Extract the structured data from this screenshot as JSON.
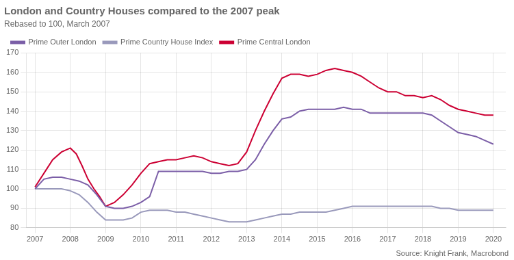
{
  "chart_data": {
    "type": "line",
    "title": "London and Country Houses compared to the 2007 peak",
    "subtitle": "Rebased to 100, March 2007",
    "annotations": [
      "Source: Knight Frank, Macrobond"
    ],
    "legend": "upper left",
    "grid": true,
    "xlim": [
      2006.75,
      2020.35
    ],
    "xticks": [
      2007,
      2008,
      2009,
      2010,
      2011,
      2012,
      2013,
      2014,
      2015,
      2016,
      2017,
      2018,
      2019,
      2020
    ],
    "ylim": [
      80,
      170
    ],
    "yticks": [
      80,
      90,
      100,
      110,
      120,
      130,
      140,
      150,
      160,
      170
    ],
    "series": [
      {
        "name": "Prime Outer London",
        "color": "#7b5ea7",
        "x": [
          2007.0,
          2007.25,
          2007.5,
          2007.75,
          2008.0,
          2008.25,
          2008.5,
          2008.75,
          2009.0,
          2009.25,
          2009.5,
          2009.75,
          2010.0,
          2010.25,
          2010.5,
          2010.75,
          2011.0,
          2011.25,
          2011.5,
          2011.75,
          2012.0,
          2012.25,
          2012.5,
          2012.75,
          2013.0,
          2013.25,
          2013.5,
          2013.75,
          2014.0,
          2014.25,
          2014.5,
          2014.75,
          2015.0,
          2015.25,
          2015.5,
          2015.75,
          2016.0,
          2016.25,
          2016.5,
          2016.75,
          2017.0,
          2017.25,
          2017.5,
          2017.75,
          2018.0,
          2018.25,
          2018.5,
          2018.75,
          2019.0,
          2019.25,
          2019.5,
          2019.75,
          2020.0
        ],
        "values": [
          100,
          105,
          106,
          106,
          105,
          104,
          102,
          97,
          91,
          90,
          90,
          91,
          93,
          96,
          109,
          109,
          109,
          109,
          109,
          109,
          108,
          108,
          109,
          109,
          110,
          115,
          123,
          130,
          136,
          137,
          140,
          141,
          141,
          141,
          141,
          142,
          141,
          141,
          139,
          139,
          139,
          139,
          139,
          139,
          139,
          138,
          135,
          132,
          129,
          128,
          127,
          125,
          123
        ]
      },
      {
        "name": "Prime Country House Index",
        "color": "#9999bb",
        "x": [
          2007.0,
          2007.25,
          2007.5,
          2007.75,
          2008.0,
          2008.25,
          2008.5,
          2008.75,
          2009.0,
          2009.25,
          2009.5,
          2009.75,
          2010.0,
          2010.25,
          2010.5,
          2010.75,
          2011.0,
          2011.25,
          2011.5,
          2011.75,
          2012.0,
          2012.25,
          2012.5,
          2012.75,
          2013.0,
          2013.25,
          2013.5,
          2013.75,
          2014.0,
          2014.25,
          2014.5,
          2014.75,
          2015.0,
          2015.25,
          2015.5,
          2015.75,
          2016.0,
          2016.25,
          2016.5,
          2016.75,
          2017.0,
          2017.25,
          2017.5,
          2017.75,
          2018.0,
          2018.25,
          2018.5,
          2018.75,
          2019.0,
          2019.25,
          2019.5,
          2019.75,
          2020.0
        ],
        "values": [
          100,
          100,
          100,
          100,
          99,
          97,
          93,
          88,
          84,
          84,
          84,
          85,
          88,
          89,
          89,
          89,
          88,
          88,
          87,
          86,
          85,
          84,
          83,
          83,
          83,
          84,
          85,
          86,
          87,
          87,
          88,
          88,
          88,
          88,
          89,
          90,
          91,
          91,
          91,
          91,
          91,
          91,
          91,
          91,
          91,
          91,
          90,
          90,
          89,
          89,
          89,
          89,
          89
        ]
      },
      {
        "name": "Prime Central London",
        "color": "#cc0033",
        "x": [
          2007.0,
          2007.25,
          2007.5,
          2007.75,
          2008.0,
          2008.17,
          2008.33,
          2008.5,
          2008.67,
          2008.83,
          2009.0,
          2009.25,
          2009.5,
          2009.75,
          2010.0,
          2010.25,
          2010.5,
          2010.75,
          2011.0,
          2011.25,
          2011.5,
          2011.75,
          2012.0,
          2012.25,
          2012.5,
          2012.75,
          2013.0,
          2013.25,
          2013.5,
          2013.75,
          2014.0,
          2014.25,
          2014.5,
          2014.75,
          2015.0,
          2015.25,
          2015.5,
          2015.75,
          2016.0,
          2016.25,
          2016.5,
          2016.75,
          2017.0,
          2017.25,
          2017.5,
          2017.75,
          2018.0,
          2018.25,
          2018.5,
          2018.75,
          2019.0,
          2019.25,
          2019.5,
          2019.75,
          2020.0
        ],
        "values": [
          101,
          108,
          115,
          119,
          121,
          118,
          112,
          105,
          100,
          96,
          91,
          93,
          97,
          102,
          108,
          113,
          114,
          115,
          115,
          116,
          117,
          116,
          114,
          113,
          112,
          113,
          119,
          130,
          140,
          149,
          157,
          159,
          159,
          158,
          159,
          161,
          162,
          161,
          160,
          158,
          155,
          152,
          150,
          150,
          148,
          148,
          147,
          148,
          146,
          143,
          141,
          140,
          139,
          138,
          138
        ]
      }
    ]
  }
}
